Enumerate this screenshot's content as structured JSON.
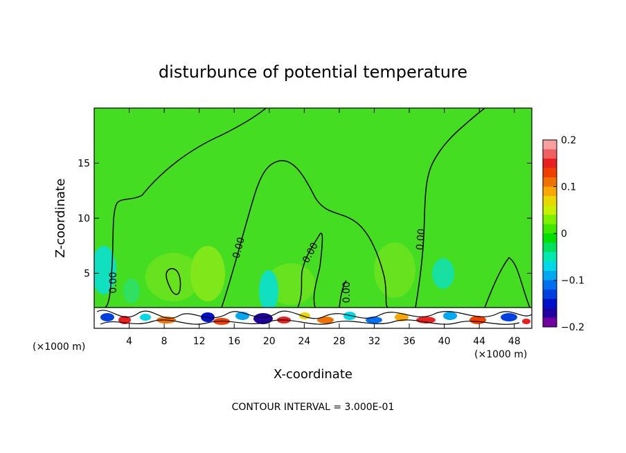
{
  "chart_data": {
    "type": "heatmap",
    "title": "disturbunce of potential temperature",
    "xlabel": "X-coordinate",
    "ylabel": "Z-coordinate",
    "x_unit": "(×1000 m)",
    "x_range": [
      0,
      50
    ],
    "y_range": [
      0,
      20
    ],
    "x_ticks": [
      4,
      8,
      12,
      16,
      20,
      24,
      28,
      32,
      36,
      40,
      44,
      48
    ],
    "y_ticks": [
      5,
      10,
      15
    ],
    "contour_interval_text": "CONTOUR INTERVAL = 3.000E-01",
    "contour_label": "0.00",
    "colorbar": {
      "range": [
        -0.2,
        0.2
      ],
      "ticks": [
        "0.2",
        "0.1",
        "0",
        "−0.1",
        "−0.2"
      ],
      "colors": [
        "#f8a0a0",
        "#f06060",
        "#e82020",
        "#f04000",
        "#f07000",
        "#f8a800",
        "#e8d800",
        "#c8f000",
        "#80f000",
        "#40e800",
        "#00e000",
        "#00e060",
        "#00e8b0",
        "#00d8e8",
        "#00a8f0",
        "#0070f0",
        "#0040e0",
        "#0010c8",
        "#2000a0",
        "#7000a0"
      ]
    },
    "grid": false,
    "legend": "colorbar-right"
  }
}
